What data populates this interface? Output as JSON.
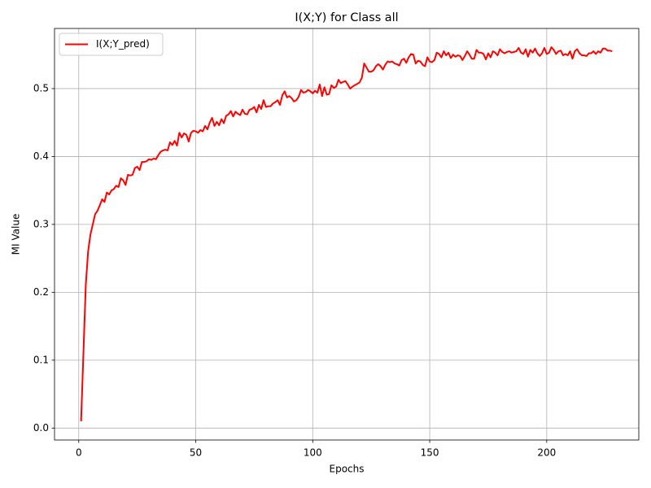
{
  "chart_data": {
    "type": "line",
    "title": "I(X;Y) for Class all",
    "xlabel": "Epochs",
    "ylabel": "MI Value",
    "x": [
      1,
      2,
      3,
      4,
      5,
      6,
      7,
      8,
      9,
      10,
      11,
      12,
      13,
      14,
      15,
      16,
      17,
      18,
      19,
      20,
      21,
      22,
      23,
      24,
      25,
      26,
      27,
      28,
      29,
      30,
      31,
      32,
      33,
      34,
      35,
      36,
      37,
      38,
      39,
      40,
      41,
      42,
      43,
      44,
      45,
      46,
      47,
      48,
      49,
      50,
      51,
      52,
      53,
      54,
      55,
      56,
      57,
      58,
      59,
      60,
      61,
      62,
      63,
      64,
      65,
      66,
      67,
      68,
      69,
      70,
      71,
      72,
      73,
      74,
      75,
      76,
      77,
      78,
      79,
      80,
      81,
      82,
      83,
      84,
      85,
      86,
      87,
      88,
      89,
      90,
      91,
      92,
      93,
      94,
      95,
      96,
      97,
      98,
      99,
      100,
      101,
      102,
      103,
      104,
      105,
      106,
      107,
      108,
      109,
      110,
      111,
      112,
      113,
      114,
      115,
      116,
      117,
      118,
      119,
      120,
      121,
      122,
      123,
      124,
      125,
      126,
      127,
      128,
      129,
      130,
      131,
      132,
      133,
      134,
      135,
      136,
      137,
      138,
      139,
      140,
      141,
      142,
      143,
      144,
      145,
      146,
      147,
      148,
      149,
      150,
      151,
      152,
      153,
      154,
      155,
      156,
      157,
      158,
      159,
      160,
      161,
      162,
      163,
      164,
      165,
      166,
      167,
      168,
      169,
      170,
      171,
      172,
      173,
      174,
      175,
      176,
      177,
      178,
      179,
      180,
      181,
      182,
      183,
      184,
      185,
      186,
      187,
      188,
      189,
      190,
      191,
      192,
      193,
      194,
      195,
      196,
      197,
      198,
      199,
      200,
      201,
      202,
      203,
      204,
      205,
      206,
      207,
      208,
      209,
      210,
      211,
      212,
      213,
      214,
      215,
      216,
      217,
      218,
      219,
      220,
      221,
      222,
      223,
      224,
      225,
      226,
      227,
      228
    ],
    "series": [
      {
        "name": "I(X;Y_pred)",
        "color": "#ff0000",
        "values": [
          0.01,
          0.11,
          0.21,
          0.26,
          0.285,
          0.3,
          0.315,
          0.32,
          0.328,
          0.337,
          0.333,
          0.347,
          0.344,
          0.35,
          0.352,
          0.357,
          0.355,
          0.368,
          0.365,
          0.358,
          0.373,
          0.372,
          0.373,
          0.383,
          0.385,
          0.38,
          0.392,
          0.392,
          0.393,
          0.396,
          0.395,
          0.397,
          0.396,
          0.402,
          0.407,
          0.409,
          0.41,
          0.409,
          0.421,
          0.417,
          0.423,
          0.416,
          0.435,
          0.428,
          0.434,
          0.432,
          0.422,
          0.435,
          0.438,
          0.437,
          0.435,
          0.439,
          0.437,
          0.445,
          0.44,
          0.45,
          0.457,
          0.445,
          0.451,
          0.446,
          0.455,
          0.449,
          0.46,
          0.462,
          0.467,
          0.459,
          0.466,
          0.463,
          0.461,
          0.469,
          0.463,
          0.462,
          0.469,
          0.47,
          0.473,
          0.465,
          0.476,
          0.47,
          0.483,
          0.473,
          0.474,
          0.474,
          0.478,
          0.48,
          0.483,
          0.476,
          0.49,
          0.496,
          0.487,
          0.489,
          0.486,
          0.481,
          0.483,
          0.488,
          0.498,
          0.494,
          0.495,
          0.498,
          0.496,
          0.493,
          0.497,
          0.494,
          0.506,
          0.489,
          0.502,
          0.491,
          0.492,
          0.505,
          0.501,
          0.503,
          0.513,
          0.508,
          0.51,
          0.511,
          0.506,
          0.5,
          0.503,
          0.505,
          0.507,
          0.509,
          0.516,
          0.537,
          0.531,
          0.525,
          0.525,
          0.527,
          0.533,
          0.536,
          0.533,
          0.528,
          0.535,
          0.54,
          0.539,
          0.54,
          0.537,
          0.536,
          0.534,
          0.542,
          0.544,
          0.538,
          0.546,
          0.551,
          0.55,
          0.537,
          0.541,
          0.54,
          0.535,
          0.533,
          0.546,
          0.54,
          0.539,
          0.542,
          0.553,
          0.551,
          0.546,
          0.555,
          0.549,
          0.553,
          0.545,
          0.55,
          0.547,
          0.549,
          0.548,
          0.542,
          0.548,
          0.555,
          0.55,
          0.544,
          0.544,
          0.557,
          0.553,
          0.553,
          0.551,
          0.543,
          0.552,
          0.546,
          0.555,
          0.553,
          0.549,
          0.558,
          0.554,
          0.552,
          0.554,
          0.555,
          0.553,
          0.554,
          0.555,
          0.56,
          0.553,
          0.551,
          0.558,
          0.547,
          0.557,
          0.553,
          0.559,
          0.552,
          0.548,
          0.552,
          0.56,
          0.551,
          0.553,
          0.561,
          0.557,
          0.551,
          0.555,
          0.556,
          0.549,
          0.551,
          0.549,
          0.555,
          0.544,
          0.555,
          0.558,
          0.552,
          0.549,
          0.549,
          0.548,
          0.552,
          0.552,
          0.555,
          0.551,
          0.555,
          0.553,
          0.559,
          0.559,
          0.556,
          0.556,
          0.555
        ]
      }
    ],
    "xlim": [
      -10.35,
      239.35
    ],
    "xticks": [
      0,
      50,
      100,
      150,
      200
    ],
    "ylim": [
      -0.0176,
      0.5886
    ],
    "yticks": [
      {
        "value": 0,
        "label": "0.0"
      },
      {
        "value": 0.1,
        "label": "0.1"
      },
      {
        "value": 0.2,
        "label": "0.2"
      },
      {
        "value": 0.3,
        "label": "0.3"
      },
      {
        "value": 0.4,
        "label": "0.4"
      },
      {
        "value": 0.5,
        "label": "0.5"
      }
    ],
    "grid": true,
    "legend": "upper-left"
  }
}
